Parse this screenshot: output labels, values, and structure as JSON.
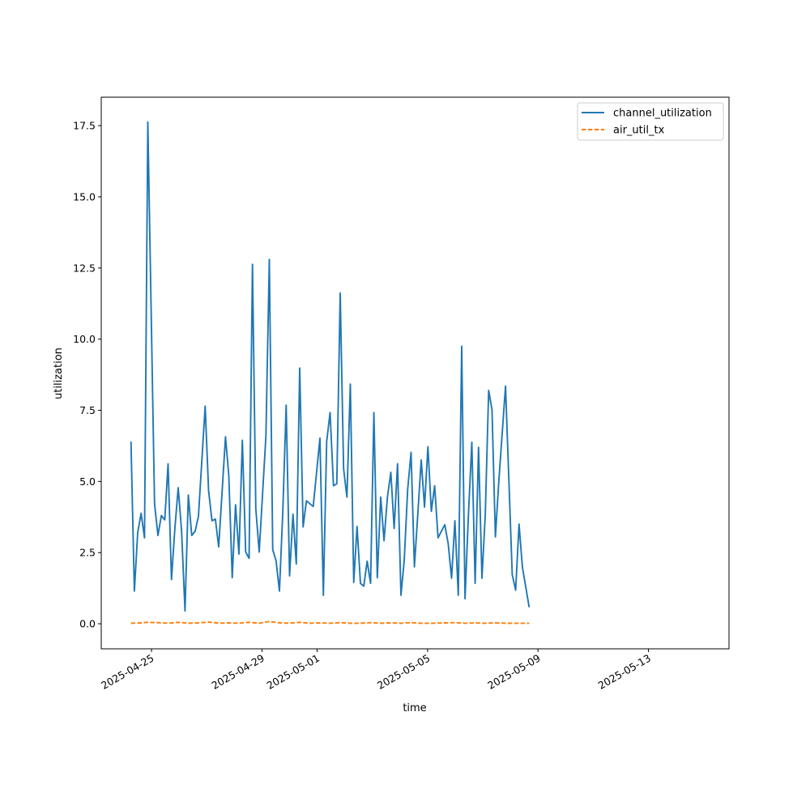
{
  "chart_data": {
    "type": "line",
    "xlabel": "time",
    "ylabel": "utilization",
    "x_axis": {
      "scale": "date",
      "range": [
        "2025-04-23T04:19",
        "2025-05-15T22:02"
      ],
      "tick_labels": [
        "2025-04-25",
        "2025-04-29",
        "2025-05-01",
        "2025-05-05",
        "2025-05-09",
        "2025-05-13"
      ]
    },
    "y_axis": {
      "range": [
        -0.88,
        18.5
      ],
      "ticks": [
        0.0,
        2.5,
        5.0,
        7.5,
        10.0,
        12.5,
        15.0,
        17.5
      ],
      "tick_labels": [
        "0.0",
        "2.5",
        "5.0",
        "7.5",
        "10.0",
        "12.5",
        "15.0",
        "17.5"
      ]
    },
    "grid": false,
    "legend_position": "top-right",
    "series": [
      {
        "name": "channel_utilization",
        "color": "#1f77b4",
        "style": "solid",
        "points": [
          [
            "2025-04-24T06:10",
            6.4
          ],
          [
            "2025-04-24T09:06",
            1.15
          ],
          [
            "2025-04-24T12:02",
            3.2
          ],
          [
            "2025-04-24T14:58",
            3.88
          ],
          [
            "2025-04-24T17:54",
            3.02
          ],
          [
            "2025-04-24T20:50",
            17.63
          ],
          [
            "2025-04-25T02:41",
            4.22
          ],
          [
            "2025-04-25T05:37",
            3.1
          ],
          [
            "2025-04-25T08:34",
            3.8
          ],
          [
            "2025-04-25T11:30",
            3.65
          ],
          [
            "2025-04-25T14:26",
            5.62
          ],
          [
            "2025-04-25T17:22",
            1.55
          ],
          [
            "2025-04-25T20:18",
            3.35
          ],
          [
            "2025-04-25T23:14",
            4.78
          ],
          [
            "2025-04-26T02:10",
            3.25
          ],
          [
            "2025-04-26T05:06",
            0.45
          ],
          [
            "2025-04-26T08:02",
            4.52
          ],
          [
            "2025-04-26T10:58",
            3.1
          ],
          [
            "2025-04-26T13:54",
            3.25
          ],
          [
            "2025-04-26T16:50",
            3.78
          ],
          [
            "2025-04-26T22:41",
            7.65
          ],
          [
            "2025-04-27T01:37",
            4.68
          ],
          [
            "2025-04-27T04:34",
            3.62
          ],
          [
            "2025-04-27T07:30",
            3.68
          ],
          [
            "2025-04-27T10:26",
            2.7
          ],
          [
            "2025-04-27T16:18",
            6.57
          ],
          [
            "2025-04-27T19:14",
            5.2
          ],
          [
            "2025-04-27T22:10",
            1.62
          ],
          [
            "2025-04-28T01:06",
            4.18
          ],
          [
            "2025-04-28T04:02",
            2.45
          ],
          [
            "2025-04-28T06:58",
            6.45
          ],
          [
            "2025-04-28T09:54",
            2.52
          ],
          [
            "2025-04-28T12:50",
            2.3
          ],
          [
            "2025-04-28T15:46",
            12.63
          ],
          [
            "2025-04-28T18:42",
            4.05
          ],
          [
            "2025-04-28T21:38",
            2.52
          ],
          [
            "2025-04-29T03:29",
            6.6
          ],
          [
            "2025-04-29T06:26",
            12.8
          ],
          [
            "2025-04-29T09:22",
            2.6
          ],
          [
            "2025-04-29T12:18",
            2.22
          ],
          [
            "2025-04-29T15:14",
            1.15
          ],
          [
            "2025-04-29T18:10",
            3.98
          ],
          [
            "2025-04-29T21:06",
            7.68
          ],
          [
            "2025-04-30T00:02",
            1.68
          ],
          [
            "2025-04-30T02:58",
            3.85
          ],
          [
            "2025-04-30T05:54",
            2.1
          ],
          [
            "2025-04-30T08:50",
            8.98
          ],
          [
            "2025-04-30T11:46",
            3.4
          ],
          [
            "2025-04-30T14:42",
            4.32
          ],
          [
            "2025-04-30T17:38",
            4.22
          ],
          [
            "2025-04-30T20:34",
            4.12
          ],
          [
            "2025-05-01T02:26",
            6.52
          ],
          [
            "2025-05-01T05:22",
            1.0
          ],
          [
            "2025-05-01T08:18",
            6.4
          ],
          [
            "2025-05-01T11:14",
            7.42
          ],
          [
            "2025-05-01T14:10",
            4.85
          ],
          [
            "2025-05-01T17:06",
            4.92
          ],
          [
            "2025-05-01T20:02",
            11.62
          ],
          [
            "2025-05-01T22:58",
            5.45
          ],
          [
            "2025-05-02T01:54",
            4.45
          ],
          [
            "2025-05-02T04:50",
            8.42
          ],
          [
            "2025-05-02T07:46",
            1.45
          ],
          [
            "2025-05-02T10:42",
            3.42
          ],
          [
            "2025-05-02T13:38",
            1.42
          ],
          [
            "2025-05-02T16:34",
            1.32
          ],
          [
            "2025-05-02T19:30",
            2.2
          ],
          [
            "2025-05-02T22:26",
            1.42
          ],
          [
            "2025-05-03T01:22",
            7.42
          ],
          [
            "2025-05-03T04:18",
            1.62
          ],
          [
            "2025-05-03T07:14",
            4.45
          ],
          [
            "2025-05-03T10:10",
            2.92
          ],
          [
            "2025-05-03T13:06",
            4.45
          ],
          [
            "2025-05-03T16:02",
            5.32
          ],
          [
            "2025-05-03T18:58",
            3.35
          ],
          [
            "2025-05-03T21:54",
            5.62
          ],
          [
            "2025-05-04T00:50",
            1.0
          ],
          [
            "2025-05-04T03:46",
            2.25
          ],
          [
            "2025-05-04T06:42",
            4.72
          ],
          [
            "2025-05-04T09:38",
            6.02
          ],
          [
            "2025-05-04T12:34",
            2.0
          ],
          [
            "2025-05-04T15:30",
            3.85
          ],
          [
            "2025-05-04T18:26",
            5.75
          ],
          [
            "2025-05-04T21:22",
            4.1
          ],
          [
            "2025-05-05T00:18",
            6.22
          ],
          [
            "2025-05-05T03:14",
            3.95
          ],
          [
            "2025-05-05T06:10",
            4.85
          ],
          [
            "2025-05-05T09:06",
            3.02
          ],
          [
            "2025-05-05T14:58",
            3.48
          ],
          [
            "2025-05-05T17:54",
            2.82
          ],
          [
            "2025-05-05T20:50",
            1.6
          ],
          [
            "2025-05-05T23:46",
            3.62
          ],
          [
            "2025-05-06T02:42",
            1.0
          ],
          [
            "2025-05-06T05:38",
            9.75
          ],
          [
            "2025-05-06T08:34",
            0.88
          ],
          [
            "2025-05-06T11:30",
            3.82
          ],
          [
            "2025-05-06T14:26",
            6.38
          ],
          [
            "2025-05-06T17:22",
            1.42
          ],
          [
            "2025-05-06T20:18",
            6.2
          ],
          [
            "2025-05-06T23:14",
            1.6
          ],
          [
            "2025-05-07T02:10",
            3.82
          ],
          [
            "2025-05-07T05:06",
            8.2
          ],
          [
            "2025-05-07T08:02",
            7.52
          ],
          [
            "2025-05-07T10:58",
            3.05
          ],
          [
            "2025-05-07T13:54",
            5.0
          ],
          [
            "2025-05-07T19:46",
            8.35
          ],
          [
            "2025-05-07T22:42",
            5.0
          ],
          [
            "2025-05-08T01:38",
            1.72
          ],
          [
            "2025-05-08T04:34",
            1.18
          ],
          [
            "2025-05-08T07:30",
            3.5
          ],
          [
            "2025-05-08T10:26",
            2.0
          ],
          [
            "2025-05-08T16:18",
            0.58
          ]
        ]
      },
      {
        "name": "air_util_tx",
        "color": "#ff7f0e",
        "style": "dashed",
        "points": [
          [
            "2025-04-24T06:10",
            0.02
          ],
          [
            "2025-04-24T14:58",
            0.03
          ],
          [
            "2025-04-24T20:50",
            0.05
          ],
          [
            "2025-04-25T05:37",
            0.04
          ],
          [
            "2025-04-25T14:26",
            0.02
          ],
          [
            "2025-04-25T23:14",
            0.05
          ],
          [
            "2025-04-26T08:02",
            0.02
          ],
          [
            "2025-04-26T16:50",
            0.03
          ],
          [
            "2025-04-27T01:37",
            0.06
          ],
          [
            "2025-04-27T10:26",
            0.02
          ],
          [
            "2025-04-27T19:14",
            0.03
          ],
          [
            "2025-04-28T04:02",
            0.02
          ],
          [
            "2025-04-28T12:50",
            0.05
          ],
          [
            "2025-04-28T21:38",
            0.02
          ],
          [
            "2025-04-29T06:26",
            0.08
          ],
          [
            "2025-04-29T15:14",
            0.03
          ],
          [
            "2025-04-30T00:02",
            0.02
          ],
          [
            "2025-04-30T08:50",
            0.05
          ],
          [
            "2025-04-30T17:38",
            0.02
          ],
          [
            "2025-05-01T02:26",
            0.03
          ],
          [
            "2025-05-01T11:14",
            0.02
          ],
          [
            "2025-05-01T20:02",
            0.04
          ],
          [
            "2025-05-02T04:50",
            0.02
          ],
          [
            "2025-05-02T13:38",
            0.02
          ],
          [
            "2025-05-02T22:26",
            0.04
          ],
          [
            "2025-05-03T07:14",
            0.02
          ],
          [
            "2025-05-03T16:02",
            0.03
          ],
          [
            "2025-05-04T00:50",
            0.02
          ],
          [
            "2025-05-04T09:38",
            0.04
          ],
          [
            "2025-05-04T18:26",
            0.02
          ],
          [
            "2025-05-05T03:14",
            0.02
          ],
          [
            "2025-05-05T14:58",
            0.03
          ],
          [
            "2025-05-05T23:46",
            0.04
          ],
          [
            "2025-05-06T08:34",
            0.02
          ],
          [
            "2025-05-06T17:22",
            0.03
          ],
          [
            "2025-05-07T02:10",
            0.02
          ],
          [
            "2025-05-07T10:58",
            0.03
          ],
          [
            "2025-05-07T19:46",
            0.02
          ],
          [
            "2025-05-08T04:34",
            0.02
          ],
          [
            "2025-05-08T16:18",
            0.02
          ]
        ]
      }
    ]
  }
}
